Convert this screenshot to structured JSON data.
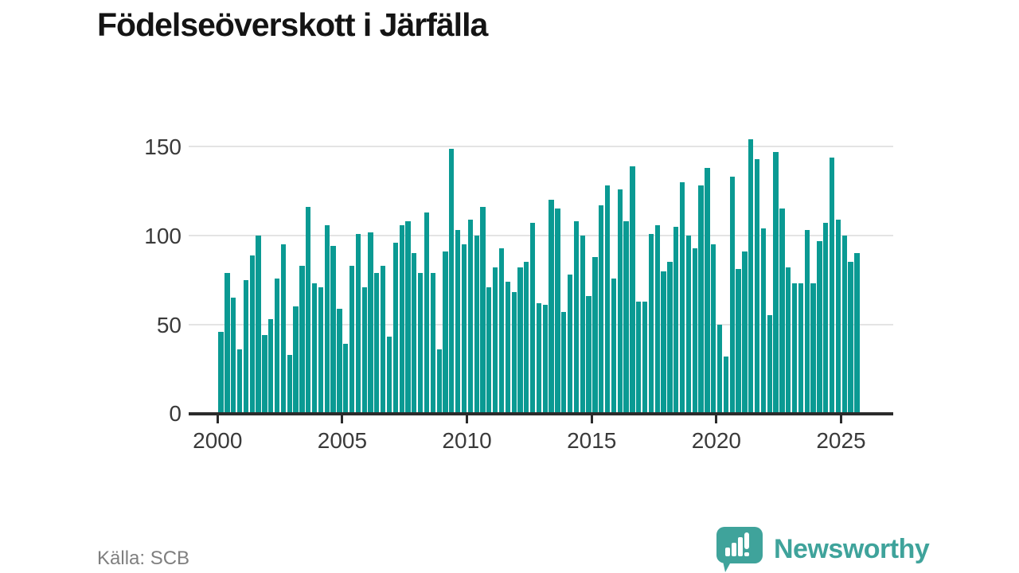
{
  "title": "Födelseöverskott i Järfälla",
  "source": "Källa: SCB",
  "branding": {
    "name": "Newsworthy",
    "logo_icon": "speech-bubble-with-bar-chart-and-exclamation",
    "color": "#3fa39b"
  },
  "colors": {
    "bar": "#0a9a93",
    "axis": "#2b2b2b",
    "gridline": "#e4e4e4",
    "tick_label": "#3a3a3a",
    "title_text": "#141414",
    "source_text": "#7f7f7f",
    "background": "#ffffff"
  },
  "chart_data": {
    "type": "bar",
    "title": "Födelseöverskott i Järfälla",
    "xlabel": "",
    "ylabel": "",
    "legend": "none",
    "grid": "horizontal",
    "interval": "quarter",
    "series_start": "2000-Q1",
    "series_end": "2025-Q3",
    "x_tick_labels": [
      "2000",
      "2005",
      "2010",
      "2015",
      "2020",
      "2025"
    ],
    "y_ticks": [
      0,
      50,
      100,
      150
    ],
    "ylim": [
      0,
      160
    ],
    "values": [
      46,
      79,
      65,
      36,
      75,
      89,
      100,
      44,
      53,
      76,
      95,
      33,
      60,
      83,
      116,
      73,
      71,
      106,
      94,
      59,
      39,
      83,
      101,
      71,
      102,
      79,
      83,
      43,
      96,
      106,
      108,
      90,
      79,
      113,
      79,
      36,
      91,
      149,
      103,
      95,
      109,
      100,
      116,
      71,
      82,
      93,
      74,
      68,
      82,
      85,
      107,
      62,
      61,
      120,
      115,
      57,
      78,
      108,
      100,
      66,
      88,
      117,
      128,
      76,
      126,
      108,
      139,
      63,
      63,
      101,
      106,
      80,
      85,
      105,
      130,
      100,
      93,
      128,
      138,
      95,
      50,
      32,
      133,
      81,
      91,
      154,
      143,
      104,
      55,
      147,
      115,
      82,
      73,
      73,
      103,
      73,
      97,
      107,
      144,
      109,
      100,
      85,
      90
    ]
  }
}
